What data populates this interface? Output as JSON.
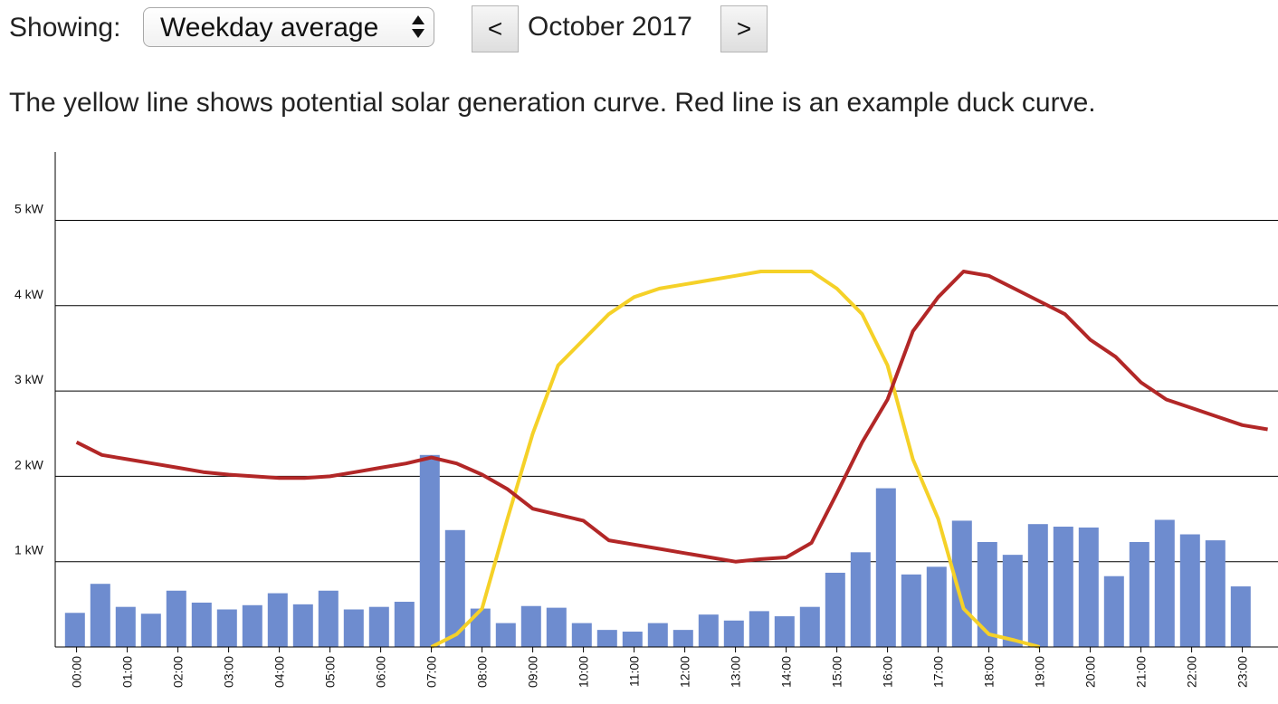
{
  "controls": {
    "showing_label": "Showing:",
    "select_value": "Weekday average",
    "prev_label": "<",
    "next_label": ">",
    "month": "October 2017"
  },
  "description": "The yellow line shows potential solar generation curve. Red line is an example duck curve.",
  "colors": {
    "bars": "#6e8ccf",
    "solar_line": "#f5d128",
    "duck_line": "#b22727",
    "grid": "#000000"
  },
  "chart_data": {
    "type": "bar",
    "ylim": [
      0,
      5.8
    ],
    "y_ticks": [
      {
        "value": 1,
        "label": "1 kW"
      },
      {
        "value": 2,
        "label": "2 kW"
      },
      {
        "value": 3,
        "label": "3 kW"
      },
      {
        "value": 4,
        "label": "4 kW"
      },
      {
        "value": 5,
        "label": "5 kW"
      }
    ],
    "grid": true,
    "x_tick_labels": [
      "00:00",
      "01:00",
      "02:00",
      "03:00",
      "04:00",
      "05:00",
      "06:00",
      "07:00",
      "08:00",
      "09:00",
      "10:00",
      "11:00",
      "12:00",
      "13:00",
      "14:00",
      "15:00",
      "16:00",
      "17:00",
      "18:00",
      "19:00",
      "20:00",
      "21:00",
      "22:00",
      "23:00"
    ],
    "bars": [
      0.4,
      0.74,
      0.47,
      0.39,
      0.66,
      0.52,
      0.44,
      0.49,
      0.63,
      0.5,
      0.66,
      0.44,
      0.47,
      0.53,
      2.25,
      1.37,
      0.45,
      0.28,
      0.48,
      0.46,
      0.28,
      0.2,
      0.18,
      0.28,
      0.2,
      0.38,
      0.31,
      0.42,
      0.36,
      0.47,
      0.87,
      1.11,
      1.86,
      0.85,
      0.94,
      1.48,
      1.23,
      1.08,
      1.44,
      1.41,
      1.4,
      0.83,
      1.23,
      1.49,
      1.32,
      1.25,
      0.71
    ],
    "series": [
      {
        "role": "solar",
        "x": [
          7.0,
          7.5,
          8.0,
          8.5,
          9.0,
          9.5,
          10.0,
          10.5,
          11.0,
          11.5,
          12.0,
          12.5,
          13.0,
          13.5,
          14.0,
          14.5,
          15.0,
          15.5,
          16.0,
          16.5,
          17.0,
          17.5,
          18.0,
          18.5,
          19.0
        ],
        "values": [
          0.0,
          0.15,
          0.45,
          1.5,
          2.5,
          3.3,
          3.6,
          3.9,
          4.1,
          4.2,
          4.25,
          4.3,
          4.35,
          4.4,
          4.4,
          4.4,
          4.2,
          3.9,
          3.3,
          2.2,
          1.5,
          0.45,
          0.15,
          0.08,
          0.0
        ]
      },
      {
        "role": "duck",
        "x": [
          0.0,
          0.5,
          1.0,
          1.5,
          2.0,
          2.5,
          3.0,
          3.5,
          4.0,
          4.5,
          5.0,
          5.5,
          6.0,
          6.5,
          7.0,
          7.5,
          8.0,
          8.5,
          9.0,
          9.5,
          10.0,
          10.5,
          11.0,
          11.5,
          12.0,
          12.5,
          13.0,
          13.5,
          14.0,
          14.5,
          15.0,
          15.5,
          16.0,
          16.5,
          17.0,
          17.5,
          18.0,
          18.5,
          19.0,
          19.5,
          20.0,
          20.5,
          21.0,
          21.5,
          22.0,
          22.5,
          23.0,
          23.5
        ],
        "values": [
          2.4,
          2.25,
          2.2,
          2.15,
          2.1,
          2.05,
          2.02,
          2.0,
          1.98,
          1.98,
          2.0,
          2.05,
          2.1,
          2.15,
          2.22,
          2.15,
          2.02,
          1.85,
          1.62,
          1.55,
          1.48,
          1.25,
          1.2,
          1.15,
          1.1,
          1.05,
          1.0,
          1.03,
          1.05,
          1.22,
          1.8,
          2.4,
          2.9,
          3.7,
          4.1,
          4.4,
          4.35,
          4.2,
          4.05,
          3.9,
          3.6,
          3.4,
          3.1,
          2.9,
          2.8,
          2.7,
          2.6,
          2.55
        ]
      }
    ]
  }
}
